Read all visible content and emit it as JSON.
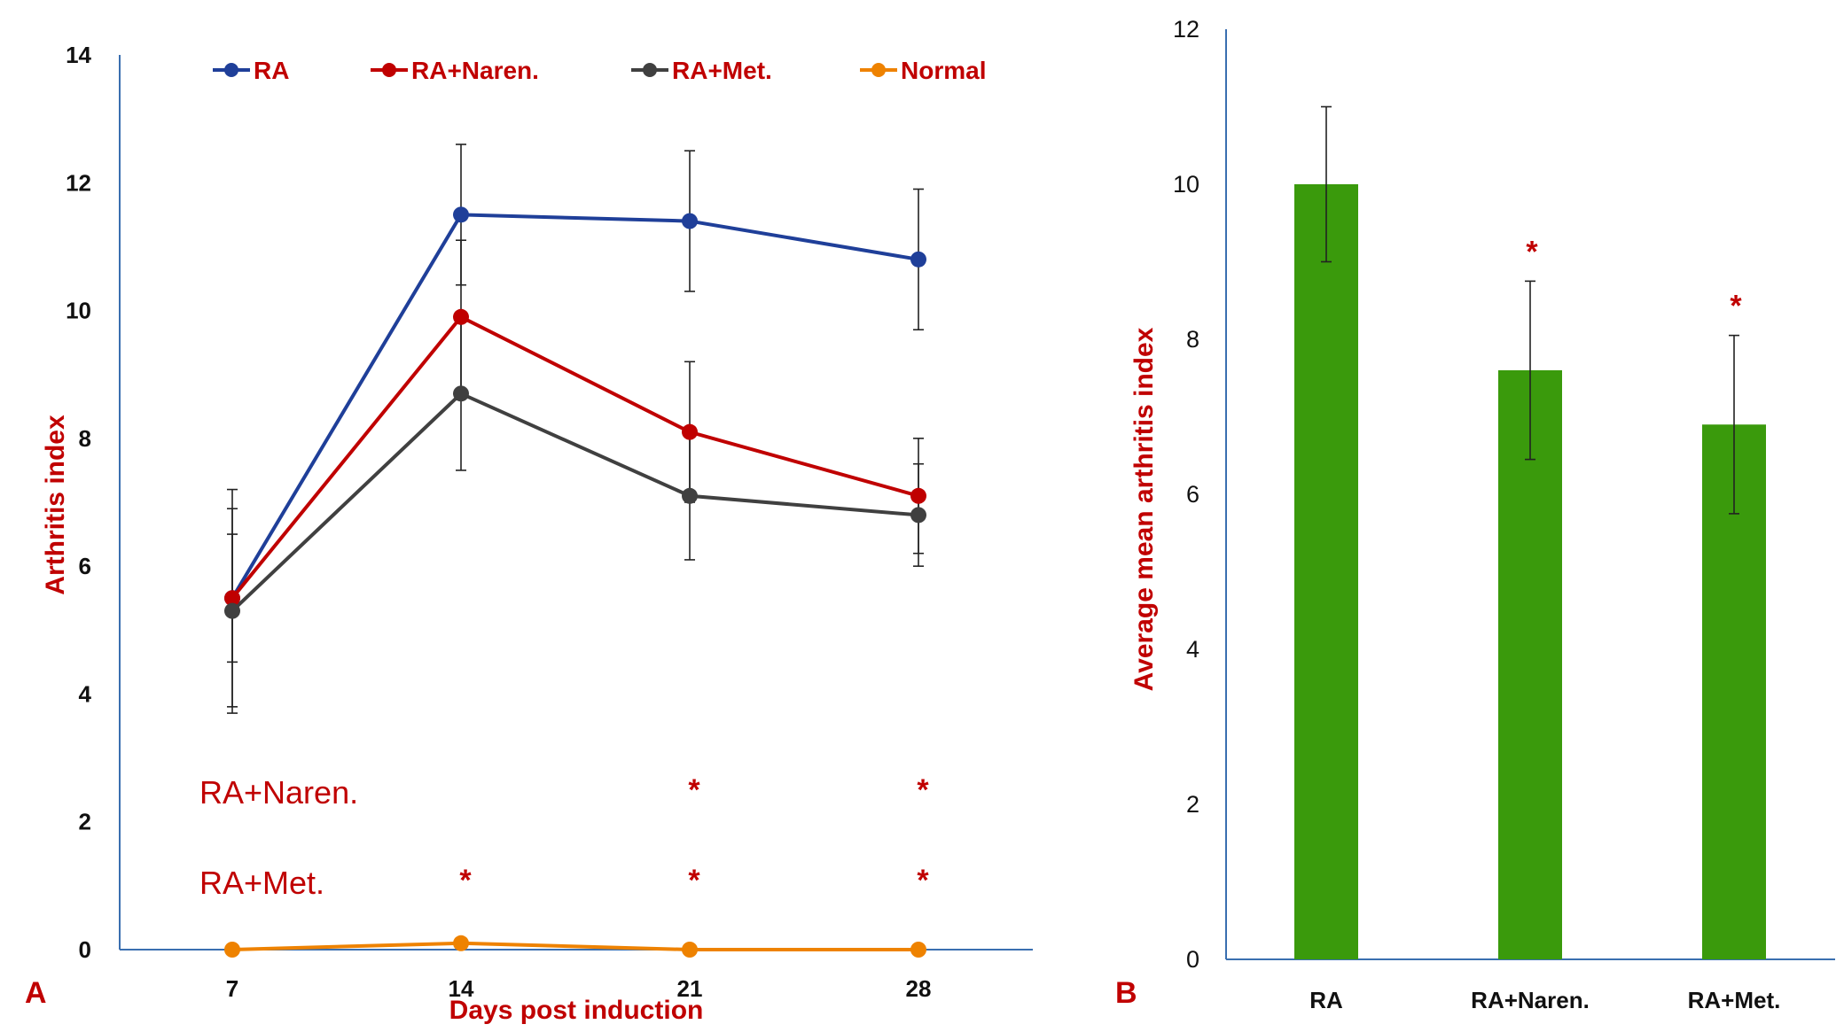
{
  "chart_data": [
    {
      "panel_label": "A",
      "type": "line",
      "xlabel": "Days post induction",
      "ylabel": "Arthritis index",
      "ylim": [
        0,
        14
      ],
      "yticks": [
        0,
        2,
        4,
        6,
        8,
        10,
        12,
        14
      ],
      "x": [
        7,
        14,
        21,
        28
      ],
      "legend_position": "top",
      "series": [
        {
          "name": "RA",
          "color": "#1f3f99",
          "values": [
            5.5,
            11.5,
            11.4,
            10.8
          ],
          "errors": [
            1.7,
            1.1,
            1.1,
            1.1
          ]
        },
        {
          "name": "RA+Naren.",
          "color": "#c00000",
          "values": [
            5.5,
            9.9,
            8.1,
            7.1
          ],
          "errors": [
            1.0,
            1.2,
            1.1,
            0.9
          ]
        },
        {
          "name": "RA+Met.",
          "color": "#404040",
          "values": [
            5.3,
            8.7,
            7.1,
            6.8
          ],
          "errors": [
            1.6,
            1.2,
            1.0,
            0.8
          ]
        },
        {
          "name": "Normal",
          "color": "#ee8200",
          "values": [
            0,
            0.1,
            0,
            0
          ],
          "errors": [
            0,
            0,
            0,
            0
          ]
        }
      ],
      "significance": [
        {
          "label": "RA+Naren.",
          "stars": [
            "",
            "",
            "*",
            "*"
          ]
        },
        {
          "label": "RA+Met.",
          "stars": [
            "",
            "*",
            "*",
            "*"
          ]
        }
      ]
    },
    {
      "panel_label": "B",
      "type": "bar",
      "ylabel": "Average mean arthritis index",
      "ylim": [
        0,
        12
      ],
      "yticks": [
        0,
        2,
        4,
        6,
        8,
        10,
        12
      ],
      "categories": [
        "RA",
        "RA+Naren.",
        "RA+Met."
      ],
      "values": [
        10.0,
        7.6,
        6.9
      ],
      "errors": [
        1.0,
        1.15,
        1.15
      ],
      "stars": [
        "",
        "*",
        "*"
      ],
      "bar_color": "#3a9a0c"
    }
  ]
}
